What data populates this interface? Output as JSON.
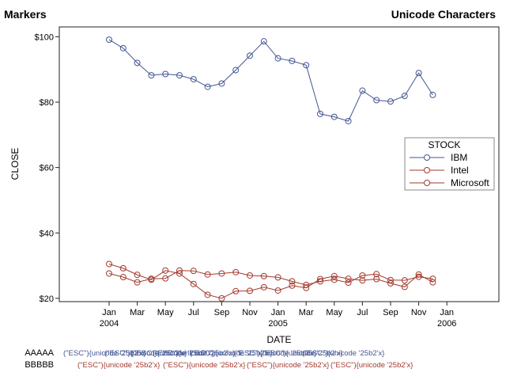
{
  "titles": {
    "left": "Markers",
    "right": "Unicode Characters"
  },
  "chart_data": {
    "type": "line",
    "xlabel": "DATE",
    "ylabel": "CLOSE",
    "ylim": [
      19,
      103
    ],
    "y_ticks": [
      {
        "value": 20,
        "label": "$20"
      },
      {
        "value": 40,
        "label": "$40"
      },
      {
        "value": 60,
        "label": "$60"
      },
      {
        "value": 80,
        "label": "$80"
      },
      {
        "value": 100,
        "label": "$100"
      }
    ],
    "x_ticks": [
      {
        "month": 0,
        "label": "Jan",
        "year": "2004"
      },
      {
        "month": 2,
        "label": "Mar",
        "year": ""
      },
      {
        "month": 4,
        "label": "May",
        "year": ""
      },
      {
        "month": 6,
        "label": "Jul",
        "year": ""
      },
      {
        "month": 8,
        "label": "Sep",
        "year": ""
      },
      {
        "month": 10,
        "label": "Nov",
        "year": ""
      },
      {
        "month": 12,
        "label": "Jan",
        "year": "2005"
      },
      {
        "month": 14,
        "label": "Mar",
        "year": ""
      },
      {
        "month": 16,
        "label": "May",
        "year": ""
      },
      {
        "month": 18,
        "label": "Jul",
        "year": ""
      },
      {
        "month": 20,
        "label": "Sep",
        "year": ""
      },
      {
        "month": 22,
        "label": "Nov",
        "year": ""
      },
      {
        "month": 24,
        "label": "Jan",
        "year": "2006"
      }
    ],
    "months": [
      0,
      1,
      2,
      3,
      4,
      5,
      6,
      7,
      8,
      9,
      10,
      11,
      12,
      13,
      14,
      15,
      16,
      17,
      18,
      19,
      20,
      21,
      22,
      23
    ],
    "series": [
      {
        "name": "IBM",
        "color": "#445694",
        "values": [
          99.1,
          96.5,
          92.0,
          88.2,
          88.6,
          88.2,
          87.0,
          84.7,
          85.7,
          89.8,
          94.2,
          98.6,
          93.4,
          92.6,
          91.3,
          76.4,
          75.5,
          74.2,
          83.5,
          80.6,
          80.2,
          81.9,
          88.9,
          82.2
        ]
      },
      {
        "name": "Intel",
        "color": "#A23A2E",
        "values": [
          30.5,
          29.2,
          27.2,
          25.7,
          28.5,
          27.6,
          24.4,
          21.1,
          20.0,
          22.2,
          22.3,
          23.4,
          22.4,
          23.9,
          23.2,
          25.9,
          26.8,
          26.0,
          25.5,
          25.9,
          24.6,
          23.5,
          27.3,
          24.9
        ]
      },
      {
        "name": "Microsoft",
        "color": "#A23A2E",
        "values": [
          27.6,
          26.5,
          24.9,
          26.0,
          26.1,
          28.5,
          28.4,
          27.3,
          27.6,
          28.0,
          27.0,
          26.8,
          26.4,
          25.2,
          24.1,
          25.2,
          25.7,
          24.8,
          27.0,
          27.4,
          25.6,
          25.5,
          26.6,
          26.0
        ]
      }
    ],
    "legend": {
      "title": "STOCK",
      "position": "right"
    }
  },
  "footnotes": {
    "row1_label": "AAAAA",
    "row2_label": "BBBBB",
    "row1_color": "#445694",
    "row2_color": "#A23A2E",
    "row1_items": [
      "(\"ESC\"){unicode '25b2'x}",
      "(\"ESC\"){unicode '25b2'x}",
      "(\"ESC\"){unicode '25b2'x}",
      "(\"ESC\"){unicode '25b2'x}",
      "(\"ESC\"){unicode '25b2'x}",
      "(\"ESC\"){unicode '25b2'x}",
      "(\"ESC\"){unicode '25b2'x}",
      "(\"ESC\"){unicode '25b2'x}"
    ],
    "row2_items": [
      "(\"ESC\"){unicode '25b2'x}",
      "(\"ESC\"){unicode '25b2'x}",
      "(\"ESC\"){unicode '25b2'x}",
      "(\"ESC\"){unicode '25b2'x}"
    ]
  }
}
